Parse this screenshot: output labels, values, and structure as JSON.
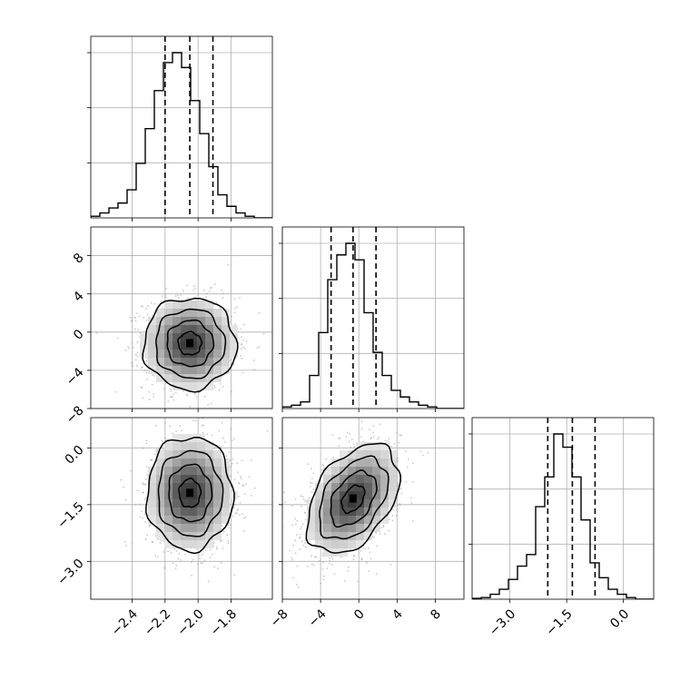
{
  "chart_data": {
    "type": "corner",
    "title": "",
    "grid": true,
    "params": [
      {
        "label": "",
        "range": [
          -2.65,
          -1.55
        ],
        "ticks": [
          -2.4,
          -2.2,
          -2.0,
          -1.8
        ],
        "tick_labels": [
          "−2.4",
          "−2.2",
          "−2.0",
          "−1.8"
        ],
        "quantiles": [
          -2.2,
          -2.05,
          -1.91
        ],
        "hist": {
          "edges_start": -2.65,
          "edges_step": 0.055,
          "counts": [
            0.01,
            0.03,
            0.06,
            0.09,
            0.17,
            0.33,
            0.54,
            0.77,
            0.94,
            1.0,
            0.91,
            0.71,
            0.51,
            0.31,
            0.14,
            0.07,
            0.03,
            0.01,
            0.0,
            0.0
          ]
        }
      },
      {
        "label": "",
        "range": [
          -8,
          11
        ],
        "ticks": [
          -8,
          -4,
          0,
          4,
          8
        ],
        "tick_labels": [
          "−8",
          "−4",
          "0",
          "4",
          "8"
        ],
        "quantiles": [
          -2.9,
          -0.6,
          1.8
        ],
        "hist": {
          "edges_start": -8,
          "edges_step": 0.95,
          "counts": [
            0.01,
            0.02,
            0.04,
            0.2,
            0.46,
            0.78,
            0.93,
            1.0,
            0.9,
            0.58,
            0.34,
            0.2,
            0.11,
            0.07,
            0.04,
            0.02,
            0.01,
            0.0,
            0.0,
            0.0
          ]
        }
      },
      {
        "label": "",
        "range": [
          -4.0,
          0.8
        ],
        "ticks": [
          -3.0,
          -1.5,
          0.0
        ],
        "tick_labels": [
          "−3.0",
          "−1.5",
          "0.0"
        ],
        "quantiles": [
          -2.0,
          -1.35,
          -0.75
        ],
        "hist": {
          "edges_start": -4.0,
          "edges_step": 0.24,
          "counts": [
            0.005,
            0.01,
            0.03,
            0.06,
            0.12,
            0.2,
            0.27,
            0.56,
            0.74,
            1.0,
            0.92,
            0.74,
            0.48,
            0.22,
            0.13,
            0.06,
            0.03,
            0.01,
            0.0,
            0.0
          ]
        }
      }
    ],
    "pairs": [
      {
        "x": 0,
        "y": 1,
        "center": [
          -2.05,
          -1.2
        ],
        "sigma": [
          0.14,
          2.4
        ],
        "rho": 0.0
      },
      {
        "x": 0,
        "y": 2,
        "center": [
          -2.05,
          -1.2
        ],
        "sigma": [
          0.13,
          0.75
        ],
        "rho": 0.0
      },
      {
        "x": 1,
        "y": 2,
        "center": [
          -0.6,
          -1.35
        ],
        "sigma": [
          2.4,
          0.72
        ],
        "rho": 0.42
      }
    ]
  }
}
